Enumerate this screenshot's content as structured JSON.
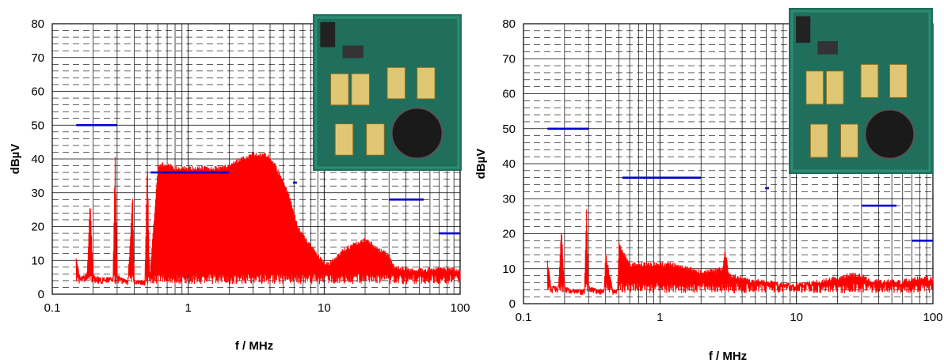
{
  "chart_data": [
    {
      "type": "line",
      "xlabel": "f / MHz",
      "ylabel": "dBµV",
      "x_scale": "log",
      "xlim": [
        0.1,
        100
      ],
      "ylim": [
        0,
        80
      ],
      "x_ticks": [
        "0.1",
        "1",
        "10",
        "100"
      ],
      "y_ticks": [
        "0",
        "10",
        "20",
        "30",
        "40",
        "50",
        "60",
        "70",
        "80"
      ],
      "grid": true,
      "limits": [
        {
          "x": [
            0.15,
            0.3
          ],
          "y": 50
        },
        {
          "x": [
            0.53,
            2.0
          ],
          "y": 36
        },
        {
          "x": [
            5.9,
            6.3
          ],
          "y": 33
        },
        {
          "x": [
            30,
            54
          ],
          "y": 28
        },
        {
          "x": [
            70,
            108
          ],
          "y": 18
        }
      ],
      "series": [
        {
          "color": "#ff0000",
          "x": [
            0.15,
            0.16,
            0.18,
            0.19,
            0.2,
            0.22,
            0.25,
            0.28,
            0.29,
            0.3,
            0.32,
            0.36,
            0.39,
            0.4,
            0.42,
            0.48,
            0.5,
            0.52,
            0.6,
            0.65,
            0.7,
            0.8,
            0.9,
            1.0,
            1.2,
            1.4,
            1.6,
            1.8,
            2.0,
            2.3,
            2.6,
            3.0,
            3.4,
            3.8,
            4.2,
            4.6,
            5.0,
            5.5,
            6.0,
            6.5,
            7.0,
            8.0,
            9.0,
            10,
            11,
            12,
            14,
            16,
            18,
            20,
            22,
            25,
            28,
            30,
            32,
            40,
            50,
            60,
            80,
            100
          ],
          "y": [
            12,
            5,
            6,
            28,
            6,
            5,
            5,
            5,
            41,
            6,
            5,
            4,
            30,
            4,
            4,
            4,
            40,
            5,
            39,
            39,
            39,
            38,
            38,
            38,
            38,
            38,
            38,
            38,
            39,
            40,
            41,
            42,
            42,
            42,
            40,
            37,
            34,
            30,
            25,
            20,
            18,
            15,
            12,
            10,
            10,
            11,
            14,
            15,
            16,
            17,
            16,
            14,
            13,
            12,
            9,
            8,
            8,
            8,
            8,
            8
          ]
        }
      ]
    },
    {
      "type": "line",
      "xlabel": "f / MHz",
      "ylabel": "dBµV",
      "x_scale": "log",
      "xlim": [
        0.1,
        100
      ],
      "ylim": [
        0,
        80
      ],
      "x_ticks": [
        "0.1",
        "1",
        "10",
        "100"
      ],
      "y_ticks": [
        "0",
        "10",
        "20",
        "30",
        "40",
        "50",
        "60",
        "70",
        "80"
      ],
      "grid": true,
      "limits": [
        {
          "x": [
            0.15,
            0.3
          ],
          "y": 50
        },
        {
          "x": [
            0.53,
            2.0
          ],
          "y": 36
        },
        {
          "x": [
            5.9,
            6.3
          ],
          "y": 33
        },
        {
          "x": [
            30,
            54
          ],
          "y": 28
        },
        {
          "x": [
            70,
            108
          ],
          "y": 18
        }
      ],
      "series": [
        {
          "color": "#ff0000",
          "x": [
            0.15,
            0.16,
            0.18,
            0.19,
            0.2,
            0.22,
            0.25,
            0.28,
            0.29,
            0.3,
            0.35,
            0.39,
            0.4,
            0.45,
            0.49,
            0.5,
            0.6,
            0.7,
            0.8,
            1.0,
            1.2,
            1.5,
            2.0,
            2.5,
            2.9,
            3.0,
            3.2,
            4.0,
            5.0,
            6.0,
            8.0,
            10,
            15,
            20,
            25,
            30,
            35,
            40,
            50,
            60,
            80,
            100
          ],
          "y": [
            13,
            5,
            5,
            22,
            5,
            4,
            4,
            4,
            28,
            5,
            4,
            4,
            15,
            4,
            4,
            18,
            12,
            12,
            12,
            12,
            12,
            11,
            10,
            10,
            11,
            16,
            9,
            8,
            7,
            7,
            6,
            6,
            7,
            8,
            9,
            9,
            7,
            7,
            7,
            7,
            8,
            8
          ]
        }
      ]
    }
  ]
}
